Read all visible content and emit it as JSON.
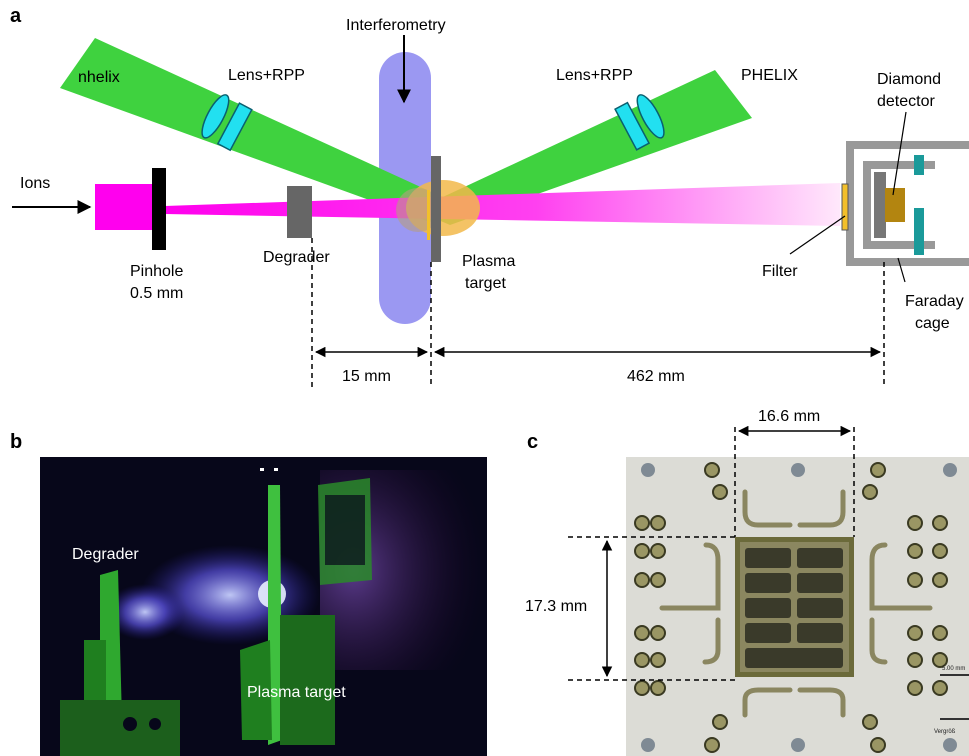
{
  "panels": {
    "a": "a",
    "b": "b",
    "c": "c"
  },
  "panel_a": {
    "interferometry": "Interferometry",
    "nhelix": "nhelix",
    "lens_rpp_left": "Lens+RPP",
    "lens_rpp_right": "Lens+RPP",
    "phelix": "PHELIX",
    "diamond": "Diamond",
    "detector": "detector",
    "ions": "Ions",
    "pinhole": "Pinhole",
    "pinhole_size": "0.5 mm",
    "degrader": "Degrader",
    "plasma": "Plasma",
    "target": "target",
    "filter": "Filter",
    "faraday": "Faraday",
    "cage": "cage",
    "dim_15": "15 mm",
    "dim_462": "462 mm"
  },
  "panel_b": {
    "degrader": "Degrader",
    "plasma_target": "Plasma target"
  },
  "panel_c": {
    "width_dim": "16.6 mm",
    "height_dim": "17.3 mm",
    "scale_text": "5.00 mm",
    "vergr_text": "Vergröß"
  },
  "colors": {
    "laser_green": "#3fd23f",
    "ion_magenta": "#ff00ee",
    "interferometry_blue": "#8a86f0",
    "lens_cyan": "#22e0f0",
    "plasma_orange": "#f2b84a",
    "teal": "#1a9a9a",
    "photo_bg": "#07071a"
  }
}
